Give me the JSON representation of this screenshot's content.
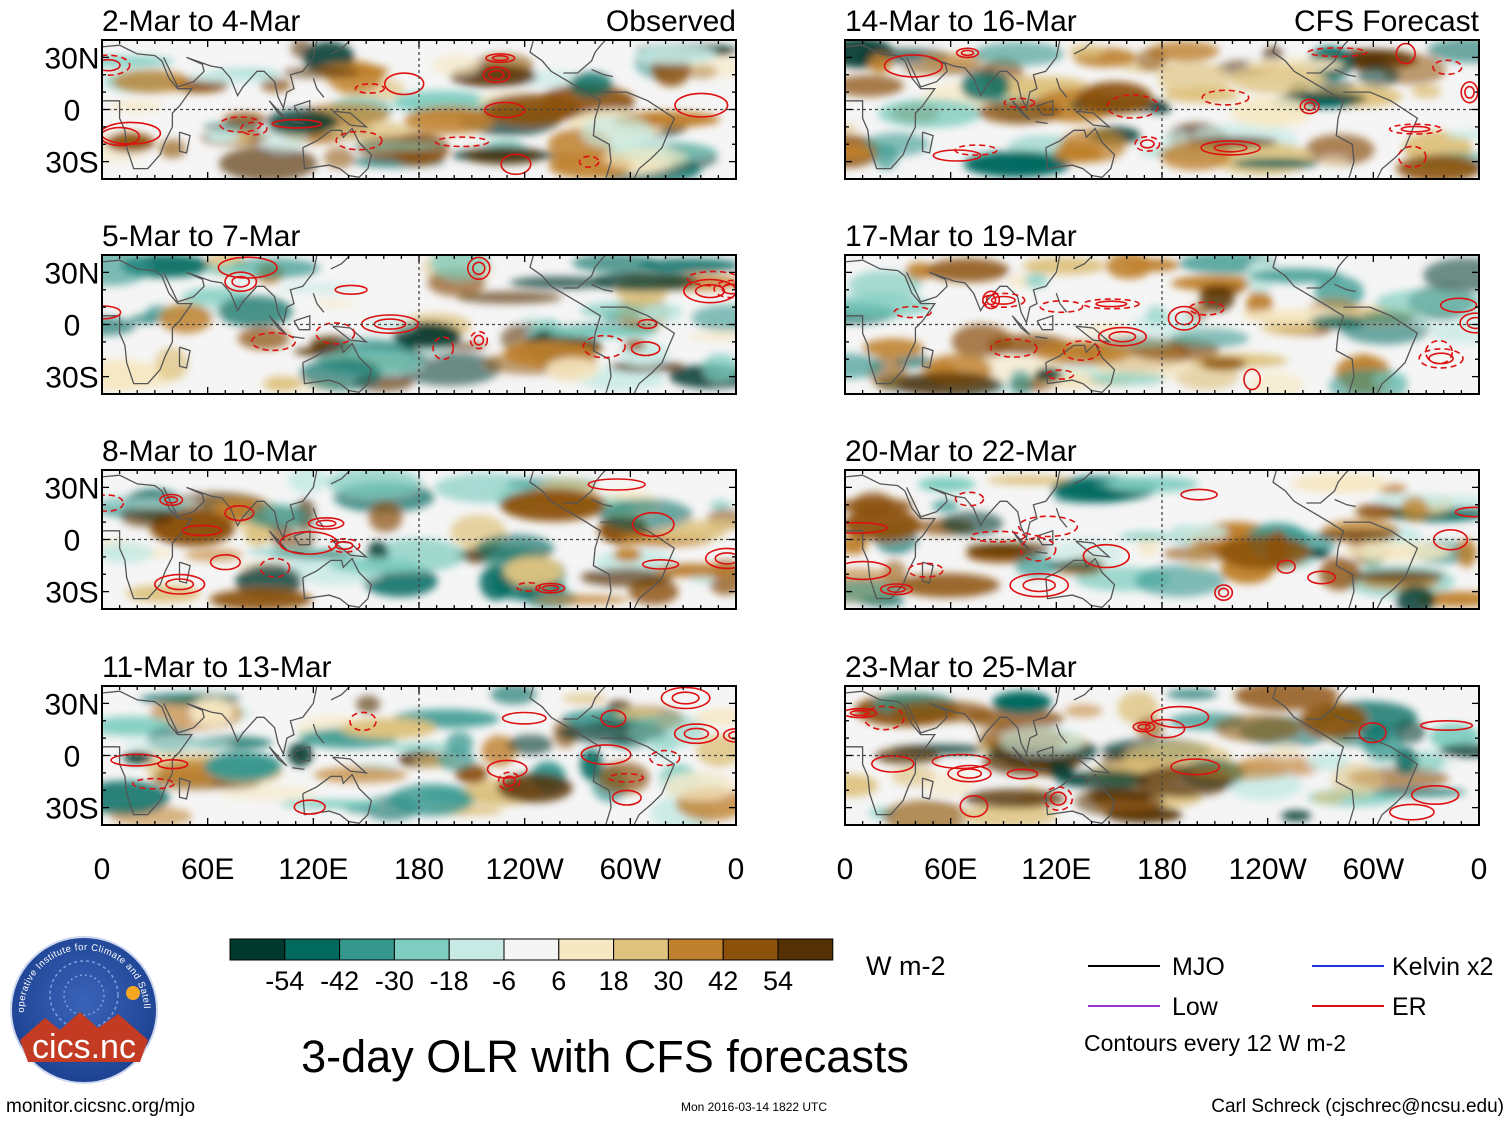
{
  "chart_data": {
    "type": "heatmap",
    "title": "3-day OLR with CFS forecasts",
    "units": "W m-2",
    "x_ticks": [
      "0",
      "60E",
      "120E",
      "180",
      "120W",
      "60W",
      "0"
    ],
    "y_ticks": [
      "30N",
      "0",
      "30S"
    ],
    "observed_label": "Observed",
    "forecast_label": "CFS Forecast",
    "panels": [
      {
        "label": "2-Mar to 4-Mar",
        "column": "observed"
      },
      {
        "label": "5-Mar to 7-Mar",
        "column": "observed"
      },
      {
        "label": "8-Mar to 10-Mar",
        "column": "observed"
      },
      {
        "label": "11-Mar to 13-Mar",
        "column": "observed"
      },
      {
        "label": "14-Mar to 16-Mar",
        "column": "forecast"
      },
      {
        "label": "17-Mar to 19-Mar",
        "column": "forecast"
      },
      {
        "label": "20-Mar to 22-Mar",
        "column": "forecast"
      },
      {
        "label": "23-Mar to 25-Mar",
        "column": "forecast"
      }
    ],
    "colorbar": {
      "ticks": [
        "-54",
        "-42",
        "-30",
        "-18",
        "-6",
        "6",
        "18",
        "30",
        "42",
        "54"
      ],
      "colors": [
        "#01382d",
        "#02695f",
        "#36978f",
        "#7fcdc0",
        "#c7eae5",
        "#f5f5f5",
        "#f6e8c3",
        "#dec27e",
        "#bf812d",
        "#8c510a",
        "#543005"
      ]
    },
    "legend": {
      "entries": [
        {
          "label": "MJO",
          "color": "#000000"
        },
        {
          "label": "Kelvin x2",
          "color": "#2233dd"
        },
        {
          "label": "Low",
          "color": "#9933cc"
        },
        {
          "label": "ER",
          "color": "#dd1111"
        }
      ],
      "note": "Contours every 12 W m-2"
    }
  },
  "footer": {
    "logo_text": "cics.nc",
    "logo_ring": "Cooperative Institute for Climate and Satellites",
    "url": "monitor.cicsnc.org/mjo",
    "timestamp": "Mon 2016-03-14 1822 UTC",
    "credit": "Carl Schreck (cjschrec@ncsu.edu)"
  }
}
